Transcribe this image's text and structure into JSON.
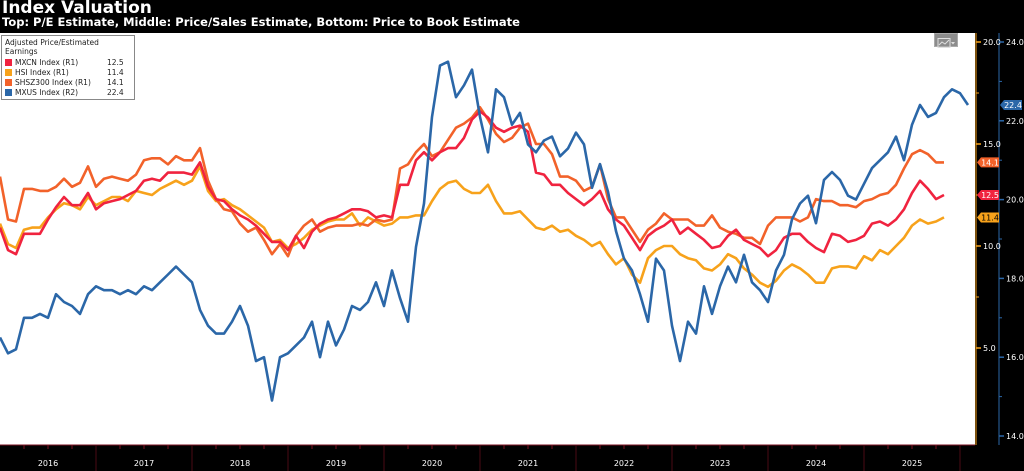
{
  "header": {
    "title": "Index Valuation",
    "subtitle": "Top: P/E Estimate, Middle: Price/Sales Estimate, Bottom: Price to Book Estimate"
  },
  "legend": {
    "title": "Adjusted Price/Estimated Earnings",
    "items": [
      {
        "label": "MXCN Index  (R1)",
        "value": "12.5",
        "color": "#f0233f"
      },
      {
        "label": "HSI Index  (R1)",
        "value": "11.4",
        "color": "#f7a21b"
      },
      {
        "label": "SHSZ300 Index  (R1)",
        "value": "14.1",
        "color": "#f2622a"
      },
      {
        "label": "MXUS Index  (R2)",
        "value": "22.4",
        "color": "#2b67a8"
      }
    ]
  },
  "toolbar": {
    "chart_type_icon": "line-chart-icon"
  },
  "chart_data": {
    "type": "line",
    "title": "Index Valuation",
    "subtitle": "Top: P/E Estimate, Middle: Price/Sales Estimate, Bottom: Price to Book Estimate",
    "x_start": "2016-01",
    "x_frequency": "monthly",
    "x_tick_labels": [
      "2016",
      "2017",
      "2018",
      "2019",
      "2020",
      "2021",
      "2022",
      "2023",
      "2024",
      "2025"
    ],
    "axes": {
      "R1": {
        "range": [
          3.0,
          20.0
        ],
        "ticks": [
          "20.0",
          "15.0",
          "10.0",
          "5.0"
        ],
        "color": "#f7a21b"
      },
      "R2": {
        "range": [
          13.8,
          24.0
        ],
        "ticks": [
          "24.0",
          "22.0",
          "20.0",
          "18.0",
          "16.0",
          "14.0"
        ],
        "color": "#2b67a8"
      }
    },
    "last_value_labels": [
      {
        "series": "SHSZ300 Index",
        "value": "14.1",
        "color": "#f2622a"
      },
      {
        "series": "MXCN Index",
        "value": "12.5",
        "color": "#f0233f"
      },
      {
        "series": "HSI Index",
        "value": "11.4",
        "color": "#f7a21b"
      },
      {
        "series": "MXUS Index",
        "value": "22.4",
        "color": "#2b67a8"
      }
    ],
    "grid": false,
    "legend_position": "top-left",
    "series": [
      {
        "name": "SHSZ300 Index",
        "axis": "R1",
        "color": "#f2622a",
        "values": [
          13.4,
          11.3,
          11.2,
          12.8,
          12.8,
          12.7,
          12.7,
          12.9,
          13.3,
          12.9,
          13.1,
          13.9,
          12.9,
          13.3,
          13.4,
          13.3,
          13.2,
          13.5,
          14.2,
          14.3,
          14.3,
          14.0,
          14.4,
          14.2,
          14.2,
          14.8,
          13.2,
          12.3,
          11.8,
          11.7,
          11.1,
          10.7,
          10.9,
          10.3,
          9.6,
          10.1,
          9.5,
          10.5,
          11.0,
          11.3,
          10.7,
          10.9,
          11.0,
          11.0,
          11.0,
          11.1,
          11.0,
          11.3,
          11.2,
          11.3,
          13.8,
          14.0,
          14.6,
          15.0,
          14.4,
          14.6,
          15.2,
          15.8,
          16.0,
          16.3,
          16.8,
          16.2,
          15.5,
          15.1,
          15.3,
          15.8,
          16.0,
          15.0,
          15.0,
          14.5,
          13.4,
          13.4,
          13.2,
          12.7,
          12.9,
          14.0,
          12.3,
          11.4,
          11.4,
          10.8,
          10.2,
          10.8,
          11.1,
          11.6,
          11.3,
          11.3,
          11.3,
          11.0,
          11.0,
          11.5,
          10.9,
          10.7,
          10.6,
          10.4,
          10.4,
          10.1,
          11.0,
          11.4,
          11.4,
          11.4,
          11.2,
          11.4,
          12.3,
          12.2,
          12.2,
          12.0,
          12.0,
          11.9,
          12.2,
          12.3,
          12.5,
          12.6,
          13.0,
          13.8,
          14.5,
          14.7,
          14.5,
          14.1,
          14.1
        ]
      },
      {
        "name": "MXCN Index",
        "axis": "R1",
        "color": "#f0233f",
        "values": [
          10.9,
          9.8,
          9.6,
          10.6,
          10.6,
          10.6,
          11.3,
          11.9,
          12.4,
          12.0,
          12.0,
          12.6,
          11.8,
          12.1,
          12.2,
          12.3,
          12.5,
          12.7,
          13.2,
          13.3,
          13.2,
          13.6,
          13.6,
          13.6,
          13.5,
          14.1,
          12.9,
          12.3,
          12.2,
          11.8,
          11.5,
          11.3,
          11.0,
          10.6,
          10.2,
          10.2,
          9.8,
          10.5,
          9.9,
          10.7,
          11.1,
          11.3,
          11.4,
          11.6,
          11.8,
          11.8,
          11.7,
          11.4,
          11.5,
          11.4,
          13.0,
          13.0,
          14.2,
          14.6,
          14.2,
          14.6,
          14.8,
          14.8,
          15.3,
          16.2,
          16.6,
          16.3,
          15.8,
          15.6,
          15.8,
          15.9,
          15.6,
          13.6,
          13.5,
          13.0,
          13.0,
          12.6,
          12.3,
          12.0,
          12.3,
          12.7,
          11.8,
          11.3,
          11.0,
          10.4,
          9.8,
          10.5,
          10.8,
          11.0,
          11.3,
          10.6,
          10.9,
          10.6,
          10.3,
          9.9,
          10.0,
          10.5,
          10.8,
          10.3,
          10.1,
          9.9,
          9.5,
          9.8,
          10.4,
          10.6,
          10.6,
          10.2,
          9.9,
          9.7,
          10.6,
          10.5,
          10.2,
          10.3,
          10.5,
          11.1,
          11.2,
          11.0,
          11.3,
          11.8,
          12.6,
          13.2,
          12.8,
          12.3,
          12.5
        ]
      },
      {
        "name": "HSI Index",
        "axis": "R1",
        "color": "#f7a21b",
        "values": [
          11.1,
          10.1,
          9.9,
          10.8,
          10.9,
          10.9,
          11.4,
          11.8,
          12.1,
          12.0,
          11.8,
          12.4,
          12.0,
          12.2,
          12.4,
          12.4,
          12.2,
          12.7,
          12.6,
          12.5,
          12.8,
          13.0,
          13.2,
          13.0,
          13.2,
          13.9,
          12.7,
          12.2,
          12.3,
          12.0,
          11.8,
          11.5,
          11.2,
          10.9,
          10.2,
          10.3,
          9.9,
          10.1,
          10.4,
          10.8,
          11.0,
          11.2,
          11.3,
          11.3,
          11.6,
          11.0,
          11.4,
          11.2,
          11.0,
          11.1,
          11.4,
          11.4,
          11.5,
          11.5,
          12.2,
          12.8,
          13.1,
          13.2,
          12.8,
          12.6,
          12.6,
          13.0,
          12.2,
          11.6,
          11.6,
          11.7,
          11.3,
          10.9,
          10.8,
          11.0,
          10.7,
          10.8,
          10.5,
          10.3,
          10.0,
          10.2,
          9.6,
          9.1,
          9.4,
          8.6,
          8.2,
          9.4,
          9.8,
          10.0,
          10.0,
          9.6,
          9.4,
          9.3,
          8.9,
          8.8,
          9.1,
          9.6,
          9.4,
          8.9,
          8.6,
          8.2,
          8.0,
          8.3,
          8.8,
          9.1,
          8.9,
          8.6,
          8.2,
          8.2,
          8.9,
          9.0,
          9.0,
          8.9,
          9.5,
          9.3,
          9.8,
          9.6,
          10.0,
          10.4,
          11.0,
          11.3,
          11.1,
          11.2,
          11.4
        ]
      },
      {
        "name": "MXUS Index",
        "axis": "R2",
        "color": "#2b67a8",
        "values": [
          16.5,
          16.1,
          16.2,
          17.0,
          17.0,
          17.1,
          17.0,
          17.6,
          17.4,
          17.3,
          17.1,
          17.6,
          17.8,
          17.7,
          17.7,
          17.6,
          17.7,
          17.6,
          17.8,
          17.7,
          17.9,
          18.1,
          18.3,
          18.1,
          17.9,
          17.2,
          16.8,
          16.6,
          16.6,
          16.9,
          17.3,
          16.8,
          15.9,
          16.0,
          14.9,
          16.0,
          16.1,
          16.3,
          16.5,
          16.9,
          16.0,
          16.9,
          16.3,
          16.7,
          17.3,
          17.2,
          17.4,
          17.9,
          17.3,
          18.2,
          17.5,
          16.9,
          18.8,
          19.9,
          22.1,
          23.4,
          23.5,
          22.6,
          22.9,
          23.3,
          22.1,
          21.2,
          22.8,
          22.6,
          21.9,
          22.2,
          21.4,
          21.2,
          21.5,
          21.6,
          21.1,
          21.3,
          21.7,
          21.4,
          20.3,
          20.9,
          20.2,
          19.2,
          18.5,
          18.2,
          17.6,
          16.9,
          18.5,
          18.2,
          16.8,
          15.9,
          16.9,
          16.6,
          17.8,
          17.1,
          17.8,
          18.3,
          17.9,
          18.6,
          17.9,
          17.7,
          17.4,
          18.2,
          18.6,
          19.5,
          19.9,
          20.1,
          19.4,
          20.5,
          20.7,
          20.5,
          20.1,
          20.0,
          20.4,
          20.8,
          21.0,
          21.2,
          21.6,
          21.0,
          21.9,
          22.4,
          22.1,
          22.2,
          22.6,
          22.8,
          22.7,
          22.4
        ]
      }
    ]
  }
}
